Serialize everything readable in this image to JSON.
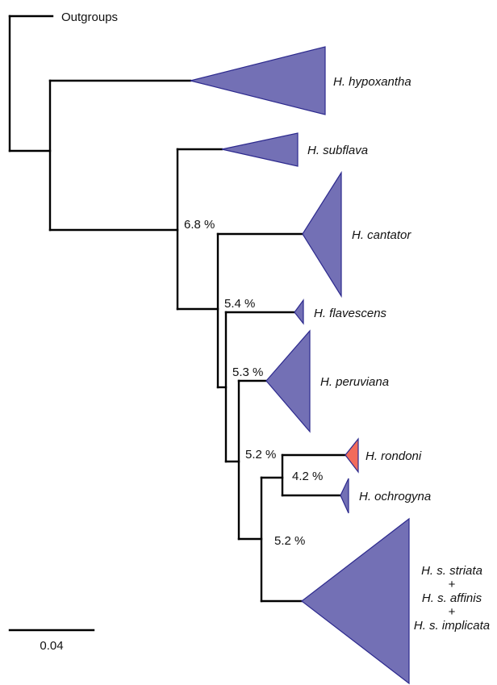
{
  "colors": {
    "clade_fill": "#7370b5",
    "clade_stroke": "#2d2a8e",
    "highlight_fill": "#f26b5b",
    "highlight_stroke": "#d9342b",
    "branch": "#000000"
  },
  "outgroup_label": "Outgroups",
  "taxa": {
    "hypoxantha": "H. hypoxantha",
    "subflava": "H. subflava",
    "cantator": "H. cantator",
    "flavescens": "H. flavescens",
    "peruviana": "H. peruviana",
    "rondoni": "H. rondoni",
    "ochrogyna": "H. ochrogyna",
    "striata_group": {
      "line1": "H. s. striata",
      "plus1": "+",
      "line2": "H. s. affinis",
      "plus2": "+",
      "line3": "H. s. implicata"
    }
  },
  "node_labels": {
    "n1": "6.8 %",
    "n2": "5.4 %",
    "n3": "5.3 %",
    "n4": "5.2 %",
    "n5": "4.2 %",
    "n6": "5.2 %"
  },
  "scale_bar": {
    "label": "0.04"
  }
}
